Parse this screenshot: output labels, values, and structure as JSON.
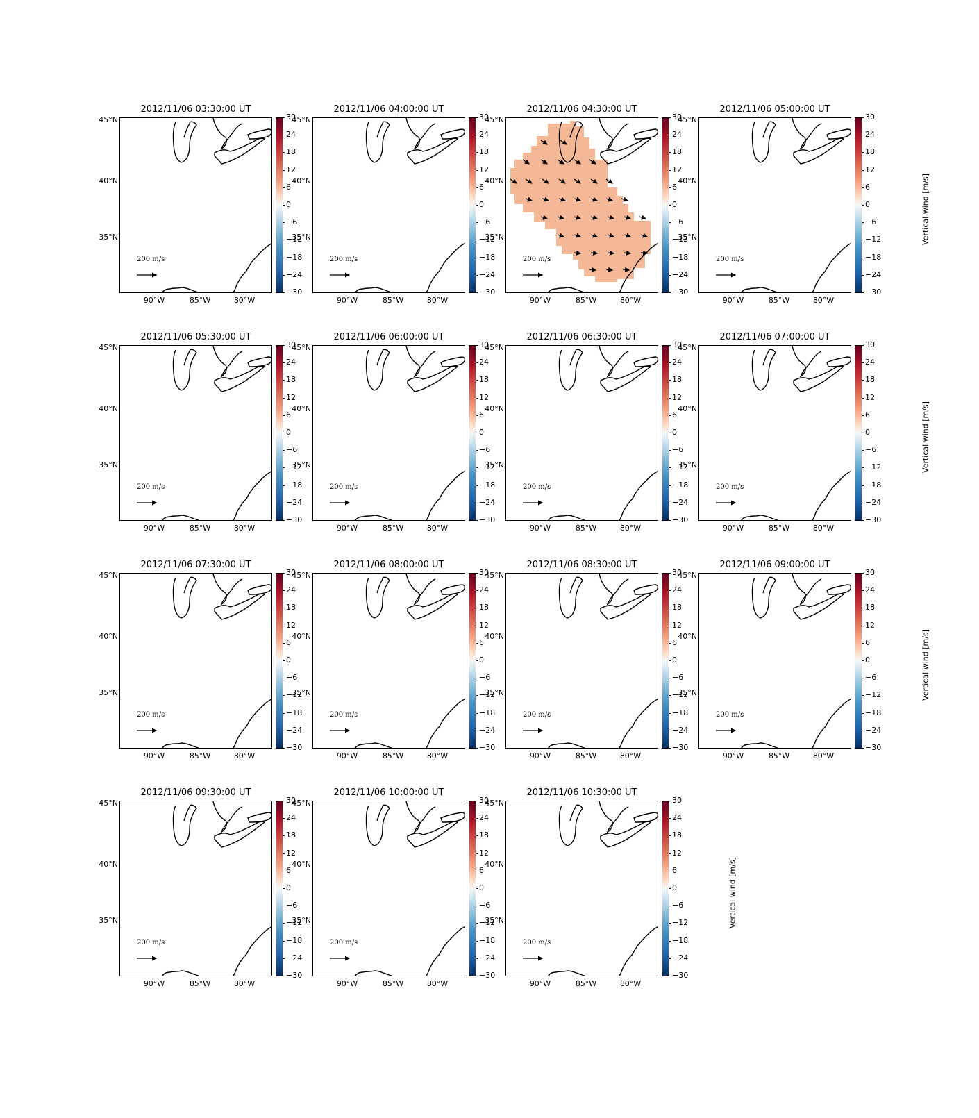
{
  "figure": {
    "panels": [
      {
        "title": "2012/11/06 03:30:00 UT",
        "shaded": false
      },
      {
        "title": "2012/11/06 04:00:00 UT",
        "shaded": false
      },
      {
        "title": "2012/11/06 04:30:00 UT",
        "shaded": true
      },
      {
        "title": "2012/11/06 05:00:00 UT",
        "shaded": false
      },
      {
        "title": "2012/11/06 05:30:00 UT",
        "shaded": false
      },
      {
        "title": "2012/11/06 06:00:00 UT",
        "shaded": false
      },
      {
        "title": "2012/11/06 06:30:00 UT",
        "shaded": false
      },
      {
        "title": "2012/11/06 07:00:00 UT",
        "shaded": false
      },
      {
        "title": "2012/11/06 07:30:00 UT",
        "shaded": false
      },
      {
        "title": "2012/11/06 08:00:00 UT",
        "shaded": false
      },
      {
        "title": "2012/11/06 08:30:00 UT",
        "shaded": false
      },
      {
        "title": "2012/11/06 09:00:00 UT",
        "shaded": false
      },
      {
        "title": "2012/11/06 09:30:00 UT",
        "shaded": false
      },
      {
        "title": "2012/11/06 10:00:00 UT",
        "shaded": false
      },
      {
        "title": "2012/11/06 10:30:00 UT",
        "shaded": false
      }
    ],
    "lat_labels": [
      "45°N",
      "40°N",
      "35°N"
    ],
    "lon_labels": [
      "90°W",
      "85°W",
      "80°W"
    ],
    "colorbar": {
      "label": "Vertical wind [m/s]",
      "ticks": [
        "30",
        "24",
        "18",
        "12",
        "6",
        "0",
        "−6",
        "−12",
        "−18",
        "−24",
        "−30"
      ],
      "colormap": "RdBu_r",
      "range": [
        -30,
        30
      ]
    },
    "quiver_key": {
      "label": "200 m/s"
    },
    "shade_color": "#f4b896",
    "coast_color": "#000000",
    "arrow_color": "#000000"
  }
}
